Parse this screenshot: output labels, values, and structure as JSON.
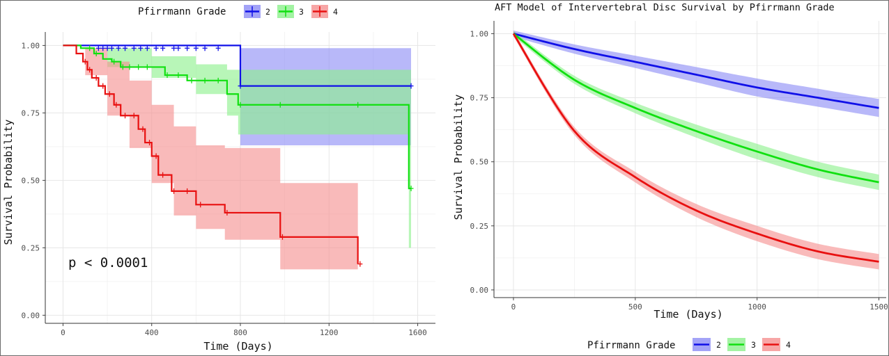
{
  "colors": {
    "grade2": "#1010e8",
    "grade3": "#10e010",
    "grade4": "#e81010",
    "grade2_fill": "#8c8cf5",
    "grade3_fill": "#8cf08c",
    "grade4_fill": "#f59090"
  },
  "charts": [
    {
      "legend": {
        "title": "Pfirrmann Grade",
        "items": [
          "2",
          "3",
          "4"
        ]
      },
      "ylabel": "Survival Probability",
      "xlabel": "Time (Days)",
      "annotation": "p < 0.0001",
      "xticks": [
        "0",
        "400",
        "800",
        "1200",
        "1600"
      ],
      "yticks": [
        "0.00",
        "0.25",
        "0.50",
        "0.75",
        "1.00"
      ]
    },
    {
      "title": "AFT Model of Intervertebral Disc Survival by Pfirrmann Grade",
      "legend": {
        "title": "Pfirrmann Grade",
        "items": [
          "2",
          "3",
          "4"
        ]
      },
      "ylabel": "Survival Probability",
      "xlabel": "Time (Days)",
      "xticks": [
        "0",
        "500",
        "1000",
        "1500"
      ],
      "yticks": [
        "0.00",
        "0.25",
        "0.50",
        "0.75",
        "1.00"
      ]
    }
  ],
  "chart_data": [
    {
      "type": "line",
      "subtype": "kaplan-meier step",
      "xlim": [
        -80,
        1680
      ],
      "ylim": [
        -0.03,
        1.05
      ],
      "series": [
        {
          "name": "2",
          "steps": [
            [
              0,
              1.0
            ],
            [
              800,
              1.0
            ],
            [
              800,
              0.85
            ],
            [
              1570,
              0.85
            ]
          ],
          "ci": [
            [
              0,
              1.0,
              1.0
            ],
            [
              800,
              1.0,
              1.0
            ],
            [
              800,
              0.99,
              0.63
            ],
            [
              1570,
              0.99,
              0.63
            ]
          ],
          "censored": [
            [
              160,
              0.99
            ],
            [
              180,
              0.99
            ],
            [
              200,
              0.99
            ],
            [
              220,
              0.99
            ],
            [
              250,
              0.99
            ],
            [
              280,
              0.99
            ],
            [
              320,
              0.99
            ],
            [
              350,
              0.99
            ],
            [
              380,
              0.99
            ],
            [
              420,
              0.99
            ],
            [
              450,
              0.99
            ],
            [
              500,
              0.99
            ],
            [
              520,
              0.99
            ],
            [
              560,
              0.99
            ],
            [
              600,
              0.99
            ],
            [
              640,
              0.99
            ],
            [
              700,
              0.99
            ],
            [
              800,
              0.85
            ],
            [
              1570,
              0.85
            ]
          ]
        },
        {
          "name": "3",
          "steps": [
            [
              0,
              1.0
            ],
            [
              80,
              1.0
            ],
            [
              80,
              0.99
            ],
            [
              140,
              0.99
            ],
            [
              140,
              0.97
            ],
            [
              180,
              0.97
            ],
            [
              180,
              0.95
            ],
            [
              220,
              0.95
            ],
            [
              220,
              0.94
            ],
            [
              260,
              0.94
            ],
            [
              260,
              0.92
            ],
            [
              460,
              0.92
            ],
            [
              460,
              0.89
            ],
            [
              560,
              0.89
            ],
            [
              560,
              0.87
            ],
            [
              740,
              0.87
            ],
            [
              740,
              0.82
            ],
            [
              790,
              0.82
            ],
            [
              790,
              0.78
            ],
            [
              1560,
              0.78
            ],
            [
              1560,
              0.47
            ],
            [
              1570,
              0.47
            ]
          ],
          "ci": [
            [
              0,
              1.0,
              1.0
            ],
            [
              200,
              0.99,
              0.92
            ],
            [
              400,
              0.96,
              0.88
            ],
            [
              600,
              0.93,
              0.82
            ],
            [
              740,
              0.91,
              0.74
            ],
            [
              790,
              0.91,
              0.67
            ],
            [
              1560,
              0.91,
              0.67
            ],
            [
              1560,
              0.91,
              0.25
            ],
            [
              1570,
              0.91,
              0.25
            ]
          ],
          "censored": [
            [
              120,
              0.99
            ],
            [
              150,
              0.97
            ],
            [
              230,
              0.94
            ],
            [
              270,
              0.92
            ],
            [
              300,
              0.92
            ],
            [
              340,
              0.92
            ],
            [
              380,
              0.92
            ],
            [
              470,
              0.89
            ],
            [
              520,
              0.89
            ],
            [
              580,
              0.87
            ],
            [
              640,
              0.87
            ],
            [
              700,
              0.87
            ],
            [
              800,
              0.78
            ],
            [
              980,
              0.78
            ],
            [
              1330,
              0.78
            ],
            [
              1570,
              0.47
            ]
          ]
        },
        {
          "name": "4",
          "steps": [
            [
              0,
              1.0
            ],
            [
              60,
              1.0
            ],
            [
              60,
              0.97
            ],
            [
              90,
              0.97
            ],
            [
              90,
              0.94
            ],
            [
              110,
              0.94
            ],
            [
              110,
              0.91
            ],
            [
              130,
              0.91
            ],
            [
              130,
              0.88
            ],
            [
              160,
              0.88
            ],
            [
              160,
              0.85
            ],
            [
              190,
              0.85
            ],
            [
              190,
              0.82
            ],
            [
              230,
              0.82
            ],
            [
              230,
              0.78
            ],
            [
              260,
              0.78
            ],
            [
              260,
              0.74
            ],
            [
              340,
              0.74
            ],
            [
              340,
              0.69
            ],
            [
              370,
              0.69
            ],
            [
              370,
              0.64
            ],
            [
              400,
              0.64
            ],
            [
              400,
              0.59
            ],
            [
              430,
              0.59
            ],
            [
              430,
              0.52
            ],
            [
              490,
              0.52
            ],
            [
              490,
              0.46
            ],
            [
              600,
              0.46
            ],
            [
              600,
              0.41
            ],
            [
              730,
              0.41
            ],
            [
              730,
              0.38
            ],
            [
              980,
              0.38
            ],
            [
              980,
              0.29
            ],
            [
              1330,
              0.29
            ],
            [
              1330,
              0.19
            ]
          ],
          "ci": [
            [
              0,
              1.0,
              1.0
            ],
            [
              100,
              0.99,
              0.89
            ],
            [
              200,
              0.94,
              0.74
            ],
            [
              300,
              0.87,
              0.62
            ],
            [
              400,
              0.78,
              0.49
            ],
            [
              500,
              0.7,
              0.37
            ],
            [
              600,
              0.63,
              0.32
            ],
            [
              730,
              0.62,
              0.28
            ],
            [
              980,
              0.62,
              0.28
            ],
            [
              980,
              0.49,
              0.17
            ],
            [
              1330,
              0.48,
              0.17
            ]
          ],
          "censored": [
            [
              100,
              0.94
            ],
            [
              120,
              0.91
            ],
            [
              150,
              0.88
            ],
            [
              180,
              0.85
            ],
            [
              210,
              0.82
            ],
            [
              240,
              0.78
            ],
            [
              280,
              0.74
            ],
            [
              320,
              0.74
            ],
            [
              360,
              0.69
            ],
            [
              390,
              0.64
            ],
            [
              420,
              0.59
            ],
            [
              450,
              0.52
            ],
            [
              500,
              0.46
            ],
            [
              560,
              0.46
            ],
            [
              620,
              0.41
            ],
            [
              740,
              0.38
            ],
            [
              990,
              0.29
            ],
            [
              1340,
              0.19
            ]
          ]
        }
      ]
    },
    {
      "type": "line",
      "subtype": "aft model curves with confidence bands",
      "xlim": [
        -80,
        1530
      ],
      "ylim": [
        -0.03,
        1.05
      ],
      "series": [
        {
          "name": "2",
          "x": [
            0,
            250,
            500,
            750,
            1000,
            1250,
            1500
          ],
          "y": [
            1.0,
            0.94,
            0.89,
            0.84,
            0.79,
            0.75,
            0.71
          ],
          "band": 0.035
        },
        {
          "name": "3",
          "x": [
            0,
            250,
            500,
            750,
            1000,
            1250,
            1500
          ],
          "y": [
            1.0,
            0.82,
            0.71,
            0.62,
            0.54,
            0.47,
            0.42
          ],
          "band": 0.03
        },
        {
          "name": "4",
          "x": [
            0,
            250,
            500,
            750,
            1000,
            1250,
            1500
          ],
          "y": [
            1.0,
            0.62,
            0.44,
            0.31,
            0.22,
            0.15,
            0.11
          ],
          "band": 0.03
        }
      ]
    }
  ]
}
